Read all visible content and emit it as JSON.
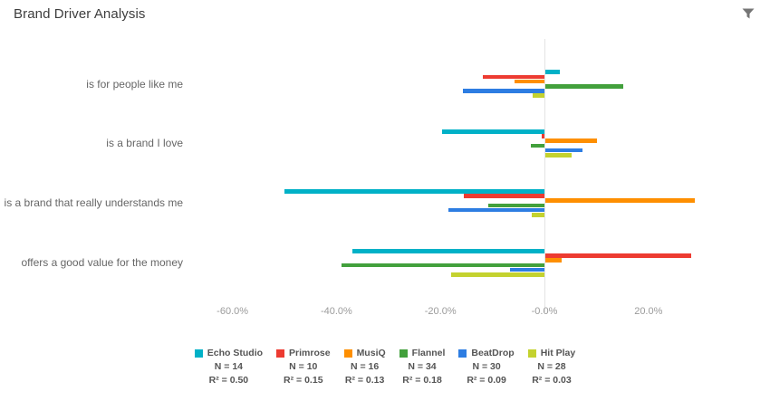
{
  "header": {
    "title": "Brand Driver Analysis"
  },
  "chart_data": {
    "type": "bar",
    "orientation": "horizontal",
    "title": "Brand Driver Analysis",
    "grid": "zero-line-only",
    "legend_position": "bottom",
    "categories": [
      "is for people like me",
      "is a brand I love",
      "is a brand that really understands me",
      "offers a good value for the money"
    ],
    "x_axis": {
      "unit": "percent",
      "range": [
        -64,
        33
      ],
      "ticks": [
        {
          "value": -60,
          "label": "-60.0%"
        },
        {
          "value": -40,
          "label": "-40.0%"
        },
        {
          "value": -20,
          "label": "-20.0%"
        },
        {
          "value": 0,
          "label": "-0.0%"
        },
        {
          "value": 20,
          "label": "20.0%"
        }
      ]
    },
    "series": [
      {
        "name": "Echo Studio",
        "color": "#00b1c7",
        "n_label": "N = 14",
        "r2_label": "R² = 0.50",
        "values": [
          2.8,
          -19.7,
          -50.0,
          -37.0
        ]
      },
      {
        "name": "Primrose",
        "color": "#ed3b31",
        "n_label": "N = 10",
        "r2_label": "R² = 0.15",
        "values": [
          -11.8,
          -0.5,
          -15.5,
          28.0
        ]
      },
      {
        "name": "MusiQ",
        "color": "#fe8f00",
        "n_label": "N = 16",
        "r2_label": "R² = 0.13",
        "values": [
          -5.7,
          9.9,
          28.8,
          3.1
        ]
      },
      {
        "name": "Flannel",
        "color": "#42a03c",
        "n_label": "N = 34",
        "r2_label": "R² = 0.18",
        "values": [
          15.0,
          -2.7,
          -10.8,
          -39.0
        ]
      },
      {
        "name": "BeatDrop",
        "color": "#2d7de2",
        "n_label": "N = 30",
        "r2_label": "R² = 0.09",
        "values": [
          -15.7,
          7.1,
          -18.5,
          -6.6
        ]
      },
      {
        "name": "Hit Play",
        "color": "#c4d22f",
        "n_label": "N = 28",
        "r2_label": "R² = 0.03",
        "values": [
          -2.3,
          5.1,
          -2.4,
          -18.0
        ]
      }
    ]
  }
}
